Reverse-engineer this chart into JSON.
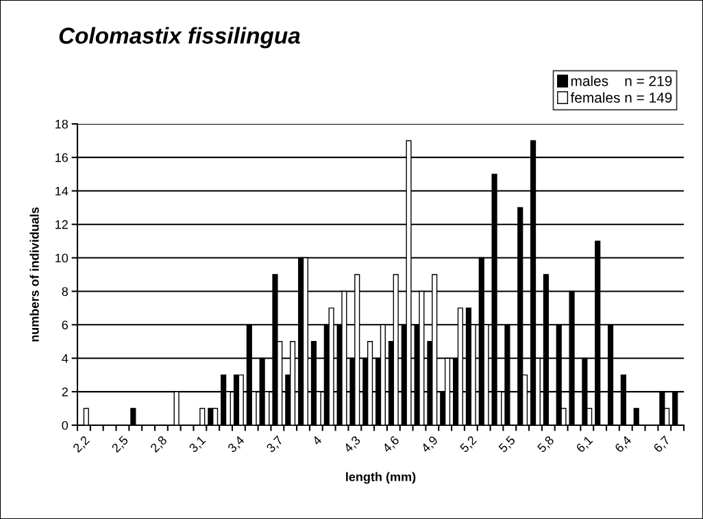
{
  "chart_data": {
    "type": "bar",
    "title": "Colomastix fissilingua",
    "xlabel": "length (mm)",
    "ylabel": "numbers of individuals",
    "categories": [
      "2,2",
      null,
      null,
      "2,5",
      null,
      null,
      "2,8",
      null,
      null,
      "3,1",
      null,
      null,
      "3,4",
      null,
      null,
      "3,7",
      null,
      null,
      "4",
      null,
      null,
      "4,3",
      null,
      null,
      "4,6",
      null,
      null,
      "4,9",
      null,
      null,
      "5,2",
      null,
      null,
      "5,5",
      null,
      null,
      "5,8",
      null,
      null,
      "6,1",
      null,
      null,
      "6,4",
      null,
      null,
      "6,7",
      null
    ],
    "series": [
      {
        "name": "males    n = 219",
        "color": "#000000",
        "values": [
          0,
          0,
          0,
          0,
          1,
          0,
          0,
          0,
          0,
          0,
          1,
          3,
          3,
          6,
          4,
          9,
          3,
          10,
          5,
          6,
          6,
          4,
          4,
          4,
          5,
          6,
          6,
          5,
          2,
          4,
          7,
          10,
          15,
          6,
          13,
          17,
          9,
          6,
          8,
          4,
          11,
          6,
          3,
          1,
          0,
          2,
          2
        ]
      },
      {
        "name": "females n = 149",
        "color": "#ffffff",
        "values": [
          1,
          0,
          0,
          0,
          0,
          0,
          0,
          2,
          0,
          1,
          1,
          2,
          3,
          2,
          2,
          5,
          5,
          10,
          2,
          7,
          8,
          9,
          5,
          6,
          9,
          17,
          8,
          9,
          4,
          7,
          6,
          6,
          2,
          0,
          3,
          4,
          0,
          1,
          0,
          1,
          0,
          0,
          0,
          0,
          0,
          1,
          0
        ]
      }
    ],
    "ylim": [
      0,
      18
    ],
    "yticks": [
      0,
      2,
      4,
      6,
      8,
      10,
      12,
      14,
      16,
      18
    ],
    "grid": "y",
    "legend": "top right"
  }
}
